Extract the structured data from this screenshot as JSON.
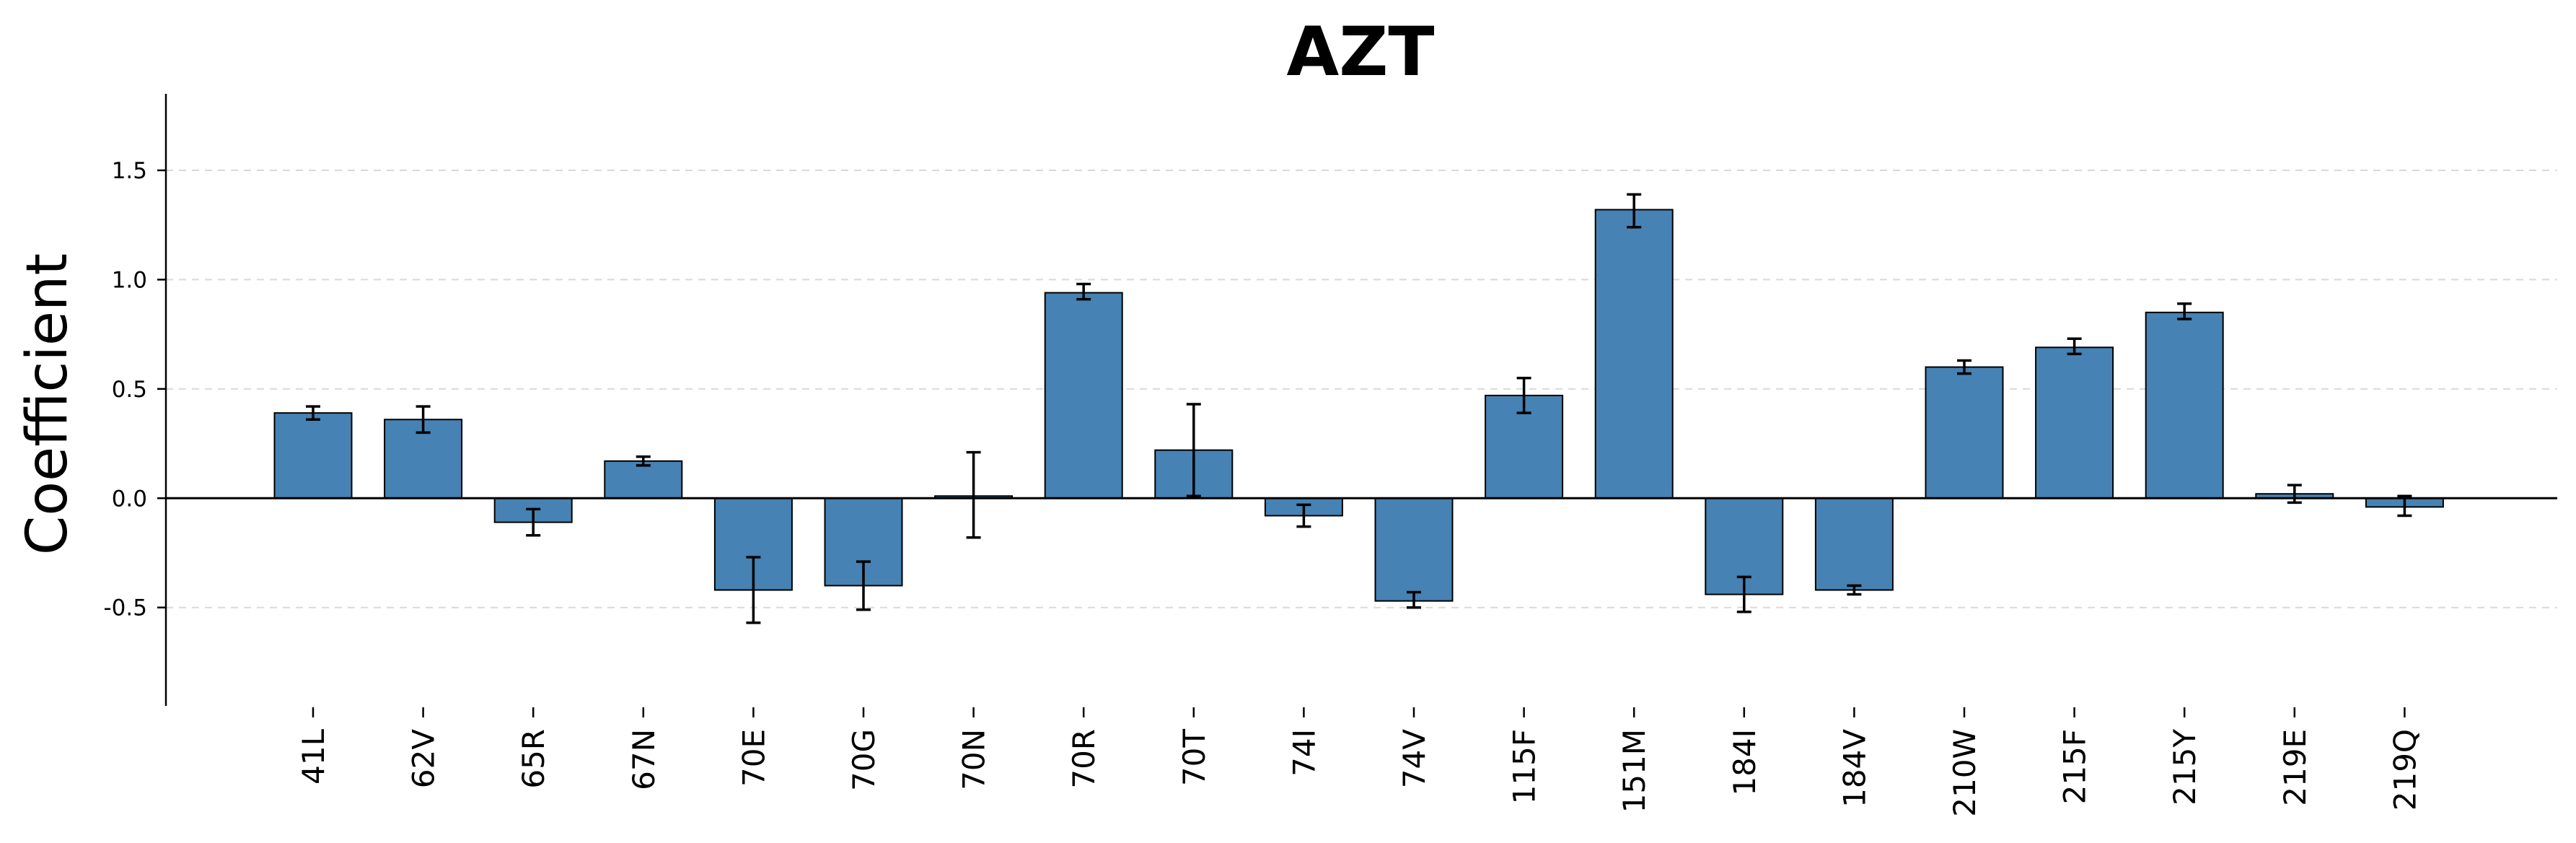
{
  "chart_data": {
    "type": "bar",
    "title": "AZT",
    "xlabel": "",
    "ylabel": "Coefficient",
    "ylim": [
      -0.95,
      1.85
    ],
    "yticks": [
      -0.5,
      0.0,
      0.5,
      1.0,
      1.5
    ],
    "ytick_labels": [
      "-0.5",
      "0.0",
      "0.5",
      "1.0",
      "1.5"
    ],
    "grid": "horizontal dashed",
    "bar_color": "#4682b4",
    "categories": [
      "41L",
      "62V",
      "65R",
      "67N",
      "70E",
      "70G",
      "70N",
      "70R",
      "70T",
      "74I",
      "74V",
      "115F",
      "151M",
      "184I",
      "184V",
      "210W",
      "215F",
      "215Y",
      "219E",
      "219Q"
    ],
    "values": [
      0.39,
      0.36,
      -0.11,
      0.17,
      -0.42,
      -0.4,
      0.01,
      0.94,
      0.22,
      -0.08,
      -0.47,
      0.47,
      1.32,
      -0.44,
      -0.42,
      0.6,
      0.69,
      0.85,
      0.02,
      -0.04
    ],
    "error_low": [
      0.36,
      0.3,
      -0.17,
      0.15,
      -0.57,
      -0.51,
      -0.18,
      0.91,
      0.01,
      -0.13,
      -0.5,
      0.39,
      1.24,
      -0.52,
      -0.44,
      0.57,
      0.66,
      0.82,
      -0.02,
      -0.08
    ],
    "error_high": [
      0.42,
      0.42,
      -0.05,
      0.19,
      -0.27,
      -0.29,
      0.21,
      0.98,
      0.43,
      -0.03,
      -0.43,
      0.55,
      1.39,
      -0.36,
      -0.4,
      0.63,
      0.73,
      0.89,
      0.06,
      0.01
    ]
  }
}
